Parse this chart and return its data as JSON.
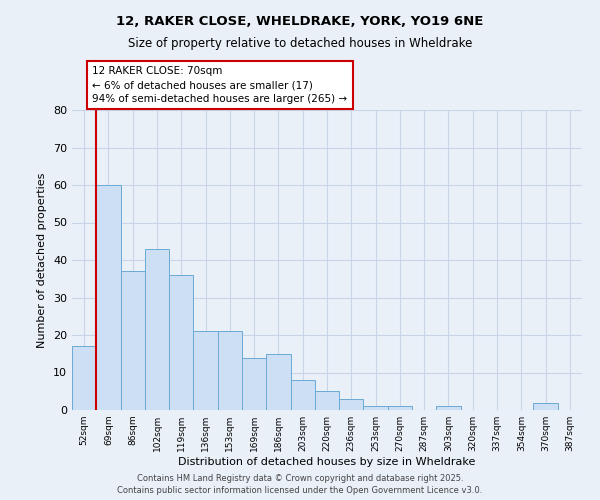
{
  "title1": "12, RAKER CLOSE, WHELDRAKE, YORK, YO19 6NE",
  "title2": "Size of property relative to detached houses in Wheldrake",
  "xlabel": "Distribution of detached houses by size in Wheldrake",
  "ylabel": "Number of detached properties",
  "bin_labels": [
    "52sqm",
    "69sqm",
    "86sqm",
    "102sqm",
    "119sqm",
    "136sqm",
    "153sqm",
    "169sqm",
    "186sqm",
    "203sqm",
    "220sqm",
    "236sqm",
    "253sqm",
    "270sqm",
    "287sqm",
    "303sqm",
    "320sqm",
    "337sqm",
    "354sqm",
    "370sqm",
    "387sqm"
  ],
  "bar_heights": [
    17,
    60,
    37,
    43,
    36,
    21,
    21,
    14,
    15,
    8,
    5,
    3,
    1,
    1,
    0,
    1,
    0,
    0,
    0,
    2,
    0
  ],
  "bar_color": "#ccdff4",
  "bar_edgecolor": "#6aaad4",
  "grid_color": "#c8d4e8",
  "background_color": "#eaf0f8",
  "property_line_x": 1,
  "property_line_label": "12 RAKER CLOSE: 70sqm",
  "annotation_line1": "← 6% of detached houses are smaller (17)",
  "annotation_line2": "94% of semi-detached houses are larger (265) →",
  "box_edgecolor": "#cc0000",
  "vline_color": "#cc0000",
  "ylim": [
    0,
    80
  ],
  "yticks": [
    0,
    10,
    20,
    30,
    40,
    50,
    60,
    70,
    80
  ],
  "footer1": "Contains HM Land Registry data © Crown copyright and database right 2025.",
  "footer2": "Contains public sector information licensed under the Open Government Licence v3.0."
}
